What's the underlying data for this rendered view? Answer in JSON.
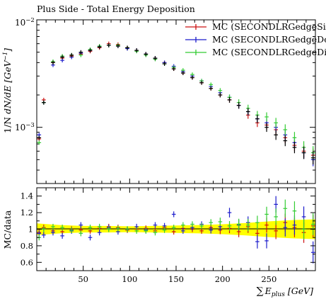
{
  "title": "Plus Side - Total Energy Deposition",
  "chart_data": [
    {
      "type": "scatter",
      "panel": "main",
      "title": "Plus Side - Total Energy Deposition",
      "ylabel": "1/N dN/dE [GeV^-1]",
      "ylabel_parts": {
        "pre": "1/N",
        "mid": "dN/dE",
        "unit_open": "[GeV",
        "unit_exp": "−1",
        "unit_close": "]"
      },
      "yscale": "log",
      "ylim": [
        0.0003,
        0.01
      ],
      "xlim": [
        0,
        300
      ],
      "y_tick_labels": [
        {
          "value": 0.01,
          "base": "10",
          "exp": "−2"
        },
        {
          "value": 0.001,
          "base": "10",
          "exp": "−3"
        }
      ],
      "legend_position": "top-right",
      "colors": {
        "red": "#cc1111",
        "blue": "#1c1ccc",
        "green": "#33cc33",
        "black": "#000000"
      },
      "series": [
        {
          "name": "MC (SECONDLRGedgeSingle)",
          "color": "#cc1111",
          "x": [
            2.5,
            7.5,
            17.5,
            27.5,
            37.5,
            47.5,
            57.5,
            67.5,
            77.5,
            87.5,
            97.5,
            107.5,
            117.5,
            127.5,
            137.5,
            147.5,
            157.5,
            167.5,
            177.5,
            187.5,
            197.5,
            207.5,
            217.5,
            227.5,
            237.5,
            247.5,
            257.5,
            267.5,
            277.5,
            287.5,
            297.5
          ],
          "y": [
            0.00078,
            0.0018,
            0.004,
            0.0044,
            0.0046,
            0.0048,
            0.0051,
            0.0055,
            0.006,
            0.0059,
            0.0055,
            0.0052,
            0.0048,
            0.0044,
            0.004,
            0.0035,
            0.0032,
            0.0029,
            0.0026,
            0.0023,
            0.002,
            0.0018,
            0.0016,
            0.0013,
            0.0011,
            0.00105,
            0.00095,
            0.0008,
            0.00068,
            0.0006,
            0.00055
          ]
        },
        {
          "name": "MC (SECONDLRGedgeDouble)",
          "color": "#1c1ccc",
          "x": [
            2.5,
            7.5,
            17.5,
            27.5,
            37.5,
            47.5,
            57.5,
            67.5,
            77.5,
            87.5,
            97.5,
            107.5,
            117.5,
            127.5,
            137.5,
            147.5,
            157.5,
            167.5,
            177.5,
            187.5,
            197.5,
            207.5,
            217.5,
            227.5,
            237.5,
            247.5,
            257.5,
            267.5,
            277.5,
            287.5,
            297.5
          ],
          "y": [
            0.00085,
            0.0017,
            0.0038,
            0.0042,
            0.0045,
            0.0049,
            0.0052,
            0.0056,
            0.0058,
            0.0057,
            0.0054,
            0.0052,
            0.0048,
            0.0044,
            0.004,
            0.0037,
            0.0033,
            0.003,
            0.0027,
            0.0024,
            0.0021,
            0.0019,
            0.0016,
            0.0014,
            0.0012,
            0.0011,
            0.001,
            0.00085,
            0.00072,
            0.00058,
            0.0005
          ]
        },
        {
          "name": "MC (SECONDLRGedgeDifferent)",
          "color": "#33cc33",
          "x": [
            2.5,
            7.5,
            17.5,
            27.5,
            37.5,
            47.5,
            57.5,
            67.5,
            77.5,
            87.5,
            97.5,
            107.5,
            117.5,
            127.5,
            137.5,
            147.5,
            157.5,
            167.5,
            177.5,
            187.5,
            197.5,
            207.5,
            217.5,
            227.5,
            237.5,
            247.5,
            257.5,
            267.5,
            277.5,
            287.5,
            297.5
          ],
          "y": [
            0.00072,
            0.0017,
            0.0041,
            0.0046,
            0.0047,
            0.0047,
            0.0053,
            0.0057,
            0.0058,
            0.0058,
            0.0055,
            0.0051,
            0.0047,
            0.0043,
            0.0039,
            0.0036,
            0.0034,
            0.0031,
            0.0027,
            0.0025,
            0.0022,
            0.0019,
            0.0017,
            0.0015,
            0.0013,
            0.00125,
            0.0011,
            0.00095,
            0.0008,
            0.00065,
            0.00058
          ]
        },
        {
          "name": "",
          "color": "#000000",
          "x": [
            2.5,
            7.5,
            17.5,
            27.5,
            37.5,
            47.5,
            57.5,
            67.5,
            77.5,
            87.5,
            97.5,
            107.5,
            117.5,
            127.5,
            137.5,
            147.5,
            157.5,
            167.5,
            177.5,
            187.5,
            197.5,
            207.5,
            217.5,
            227.5,
            237.5,
            247.5,
            257.5,
            267.5,
            277.5,
            287.5,
            297.5
          ],
          "y": [
            0.0008,
            0.0017,
            0.004,
            0.0045,
            0.0047,
            0.005,
            0.0052,
            0.0056,
            0.0058,
            0.0057,
            0.0055,
            0.0052,
            0.0048,
            0.0044,
            0.0039,
            0.0035,
            0.0032,
            0.0029,
            0.0026,
            0.0023,
            0.002,
            0.0018,
            0.0016,
            0.0014,
            0.0012,
            0.001,
            0.00085,
            0.00075,
            0.00065,
            0.00058,
            0.00052
          ]
        }
      ]
    },
    {
      "type": "scatter",
      "panel": "ratio",
      "ylabel": "MC/data",
      "xlabel": "∑E_plus [GeV]",
      "xlabel_parts": {
        "sum": "∑",
        "var": "E",
        "sub": "plus",
        "unit": "[GeV]"
      },
      "xlim": [
        0,
        300
      ],
      "ylim": [
        0.5,
        1.5
      ],
      "x_ticks": [
        50,
        100,
        150,
        200,
        250
      ],
      "y_ticks": [
        0.6,
        0.8,
        1,
        1.2,
        1.4
      ],
      "y_tick_labels": [
        "0.6",
        "0.8",
        "1",
        "1.2",
        "1.4"
      ],
      "band_color": "#ffff00",
      "band": {
        "x": [
          0,
          25,
          50,
          75,
          100,
          125,
          150,
          175,
          200,
          225,
          250,
          275,
          300
        ],
        "lower": [
          0.93,
          0.95,
          0.96,
          0.96,
          0.965,
          0.96,
          0.955,
          0.95,
          0.94,
          0.925,
          0.905,
          0.89,
          0.88
        ],
        "upper": [
          1.07,
          1.05,
          1.04,
          1.04,
          1.035,
          1.04,
          1.045,
          1.05,
          1.06,
          1.075,
          1.095,
          1.11,
          1.12
        ]
      },
      "series": [
        {
          "name": "MC (SECONDLRGedgeSingle)",
          "color": "#cc1111",
          "x": [
            2.5,
            7.5,
            17.5,
            27.5,
            37.5,
            47.5,
            57.5,
            67.5,
            77.5,
            87.5,
            97.5,
            107.5,
            117.5,
            127.5,
            137.5,
            147.5,
            157.5,
            167.5,
            177.5,
            187.5,
            197.5,
            207.5,
            217.5,
            227.5,
            237.5,
            247.5,
            257.5,
            267.5,
            277.5,
            287.5,
            297.5
          ],
          "y": [
            0.96,
            1.02,
            0.98,
            0.97,
            1.0,
            0.99,
            0.98,
            1.01,
            1.03,
            1.02,
            0.99,
            1.0,
            1.01,
            0.98,
            1.02,
            0.97,
            1.01,
            1.0,
            0.98,
            1.02,
            0.99,
            1.01,
            0.97,
            1.03,
            0.95,
            1.05,
            0.98,
            1.08,
            1.02,
            0.96,
            1.04
          ]
        },
        {
          "name": "MC (SECONDLRGedgeDouble)",
          "color": "#1c1ccc",
          "x": [
            2.5,
            7.5,
            17.5,
            27.5,
            37.5,
            47.5,
            57.5,
            67.5,
            77.5,
            87.5,
            97.5,
            107.5,
            117.5,
            127.5,
            137.5,
            147.5,
            157.5,
            167.5,
            177.5,
            187.5,
            197.5,
            207.5,
            217.5,
            227.5,
            237.5,
            247.5,
            257.5,
            267.5,
            277.5,
            287.5,
            297.5
          ],
          "y": [
            0.95,
            0.93,
            0.96,
            0.92,
            0.98,
            1.05,
            0.9,
            0.96,
            1.02,
            0.97,
            1.0,
            1.03,
            0.99,
            1.05,
            1.04,
            1.18,
            0.98,
            1.02,
            1.06,
            0.99,
            1.03,
            1.2,
            1.05,
            1.08,
            0.85,
            0.86,
            1.3,
            1.02,
            1.05,
            1.15,
            0.72
          ]
        },
        {
          "name": "MC (SECONDLRGedgeDifferent)",
          "color": "#33cc33",
          "x": [
            2.5,
            7.5,
            17.5,
            27.5,
            37.5,
            47.5,
            57.5,
            67.5,
            77.5,
            87.5,
            97.5,
            107.5,
            117.5,
            127.5,
            137.5,
            147.5,
            157.5,
            167.5,
            177.5,
            187.5,
            197.5,
            207.5,
            217.5,
            227.5,
            237.5,
            247.5,
            257.5,
            267.5,
            277.5,
            287.5,
            297.5
          ],
          "y": [
            0.9,
            1.0,
            1.03,
            1.02,
            0.99,
            0.95,
            1.02,
            1.03,
            1.0,
            1.01,
            1.0,
            0.98,
            0.98,
            0.96,
            0.99,
            1.02,
            1.05,
            1.06,
            1.04,
            1.08,
            1.09,
            1.04,
            1.06,
            1.05,
            1.08,
            1.18,
            1.15,
            1.25,
            1.22,
            1.0,
            1.06
          ]
        }
      ]
    }
  ]
}
